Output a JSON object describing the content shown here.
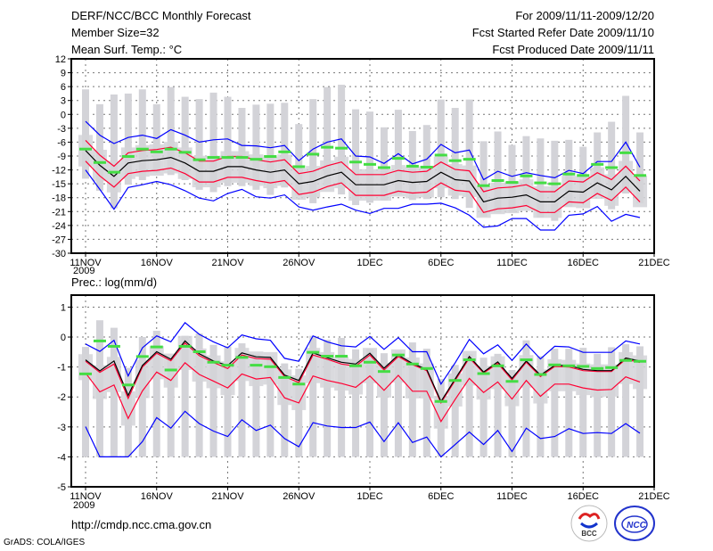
{
  "header": {
    "title": "DERF/NCC/BCC Monthly Forecast",
    "member_size": "Member Size=32",
    "variable": "Mean Surf. Temp.: °C",
    "period": "For 2009/11/11-2009/12/20",
    "start_date": "Fcst Started Refer Date 2009/11/10",
    "produced_date": "Fcst Produced Date 2009/11/11"
  },
  "footer": {
    "url": "http://cmdp.ncc.cma.gov.cn",
    "grads": "GrADS: COLA/IGES",
    "logo_bcc": "BCC",
    "logo_ncc": "NCC"
  },
  "colors": {
    "spread": "#0000ff",
    "quartile": "#ff0033",
    "mean": "#000000",
    "obs": "#44dd44",
    "bar": "#d3d3d8"
  },
  "chart_data": [
    {
      "type": "line",
      "title": "Mean Surf. Temp.: °C",
      "x_ticks": [
        "11NOV",
        "16NOV",
        "21NOV",
        "26NOV",
        "1DEC",
        "6DEC",
        "11DEC",
        "16DEC",
        "21DEC"
      ],
      "x_year": "2009",
      "ylim": [
        -30,
        12
      ],
      "y_ticks": [
        -30,
        -27,
        -24,
        -21,
        -18,
        -15,
        -12,
        -9,
        -6,
        -3,
        0,
        3,
        6,
        9,
        12
      ],
      "grid": true,
      "days": 40,
      "series": [
        {
          "name": "bar_high",
          "values": [
            5.4,
            2.2,
            4.3,
            4.5,
            5.4,
            2.2,
            5.9,
            3.8,
            3.3,
            4.7,
            3.8,
            1.4,
            2.1,
            2.3,
            2.5,
            -2.1,
            3.3,
            5.9,
            6.4,
            1.1,
            0.6,
            -2.8,
            1,
            -3.6,
            -2.3,
            3.2,
            1.4,
            3.2,
            -5.8,
            -3.7,
            -6.6,
            -4.7,
            -5.2,
            -5.7,
            -5.5,
            -7,
            -3.9,
            -1.6,
            4,
            -3.9
          ]
        },
        {
          "name": "bar_low",
          "values": [
            -13.9,
            -16.5,
            -20.3,
            -15.2,
            -14.2,
            -12.6,
            -13.1,
            -14.2,
            -16.3,
            -16.8,
            -15.5,
            -15.5,
            -16.3,
            -17.4,
            -15.8,
            -17.6,
            -19.2,
            -15.5,
            -17.3,
            -19.6,
            -19.1,
            -18.6,
            -17.3,
            -18.5,
            -18.3,
            -17.9,
            -18.3,
            -20.2,
            -22.1,
            -21.2,
            -21.2,
            -19.9,
            -22.3,
            -23,
            -19.9,
            -18.9,
            -17.3,
            -20.5,
            -17.1,
            -19.2
          ]
        },
        {
          "name": "blue_upper",
          "values": [
            -1.5,
            -4.5,
            -6.3,
            -5,
            -4.5,
            -5.2,
            -3.3,
            -4.5,
            -6,
            -5.5,
            -5.3,
            -6.7,
            -6.8,
            -7.2,
            -6.7,
            -10,
            -7.5,
            -6,
            -5.3,
            -9,
            -9.2,
            -10.6,
            -8.5,
            -10.7,
            -9.7,
            -6.5,
            -8.3,
            -7.7,
            -14.1,
            -12.3,
            -13.4,
            -12.6,
            -13.2,
            -13.7,
            -12.1,
            -12.8,
            -10.2,
            -10.2,
            -6,
            -11.4
          ]
        },
        {
          "name": "blue_lower",
          "values": [
            -12,
            -16.2,
            -20.5,
            -15.8,
            -15.2,
            -14.5,
            -15.2,
            -16.5,
            -18.1,
            -18.7,
            -17.1,
            -16.2,
            -17.8,
            -18.1,
            -17.4,
            -20,
            -20.7,
            -20,
            -19.4,
            -20.7,
            -21.4,
            -20.3,
            -20.3,
            -19.4,
            -19.4,
            -19.2,
            -20.2,
            -21.8,
            -24.4,
            -24.1,
            -22.5,
            -22.5,
            -25,
            -25,
            -21.8,
            -21.5,
            -19.9,
            -23.1,
            -21.6,
            -22.3
          ]
        },
        {
          "name": "red_upper",
          "values": [
            -5.6,
            -8.8,
            -11.2,
            -8.3,
            -7.8,
            -7.6,
            -7.1,
            -8.3,
            -10.1,
            -10.1,
            -9.1,
            -9.1,
            -9.8,
            -10.3,
            -9.8,
            -12.8,
            -12.3,
            -11.1,
            -10.3,
            -13,
            -13,
            -13,
            -12.1,
            -12.5,
            -12.3,
            -10.3,
            -11.9,
            -12.2,
            -16.7,
            -15.9,
            -15.7,
            -15.2,
            -16.7,
            -16.7,
            -14.4,
            -14.6,
            -12.6,
            -14.1,
            -11.2,
            -14.4
          ]
        },
        {
          "name": "red_lower",
          "values": [
            -10.1,
            -13.3,
            -15.7,
            -12.8,
            -12.3,
            -12.1,
            -11.6,
            -12.8,
            -14.6,
            -14.6,
            -13.6,
            -13.6,
            -14.3,
            -14.8,
            -14.3,
            -17.3,
            -16.8,
            -15.6,
            -14.8,
            -17.5,
            -17.5,
            -17.5,
            -16.6,
            -17,
            -16.8,
            -14.8,
            -16.4,
            -16.7,
            -21.2,
            -20.4,
            -20.2,
            -19.7,
            -21.2,
            -21.2,
            -18.9,
            -19.1,
            -17.1,
            -18.6,
            -15.7,
            -18.9
          ]
        },
        {
          "name": "mean",
          "values": [
            -7.8,
            -11,
            -13.4,
            -10.5,
            -10,
            -9.8,
            -9.3,
            -10.5,
            -12.3,
            -12.3,
            -11.3,
            -11.3,
            -12,
            -12.5,
            -12,
            -15,
            -14.5,
            -13.3,
            -12.5,
            -15.2,
            -15.2,
            -15.2,
            -14.3,
            -14.7,
            -14.5,
            -12.5,
            -14.1,
            -14.4,
            -18.9,
            -18.1,
            -17.9,
            -17.4,
            -18.9,
            -18.9,
            -16.6,
            -16.8,
            -14.8,
            -16.3,
            -13.4,
            -16.6
          ]
        },
        {
          "name": "green_marks",
          "values": [
            -7.5,
            -10.4,
            -12.5,
            -9.1,
            -7.5,
            -8.1,
            -7.5,
            -8.2,
            -9.8,
            -9.3,
            -9.3,
            -9.3,
            -9.7,
            -9.1,
            -8.1,
            -11.3,
            -8.6,
            -7.1,
            -7.3,
            -10.3,
            -10.8,
            -11.5,
            -9.5,
            -11.2,
            -11.4,
            -8.8,
            -10,
            -9.7,
            -15.4,
            -14.3,
            -14.7,
            -13.3,
            -14.8,
            -15,
            -12.9,
            -13.2,
            -10.8,
            -11.5,
            -8.3,
            -13.2
          ]
        }
      ]
    },
    {
      "type": "line",
      "title": "Prec.: log(mm/d)",
      "x_ticks": [
        "11NOV",
        "16NOV",
        "21NOV",
        "26NOV",
        "1DEC",
        "6DEC",
        "11DEC",
        "16DEC",
        "21DEC"
      ],
      "x_year": "2009",
      "ylim": [
        -5,
        1.4
      ],
      "y_ticks": [
        -5,
        -4,
        -3,
        -2,
        -1,
        0,
        1
      ],
      "grid": true,
      "days": 40,
      "series": [
        {
          "name": "bar_high",
          "values": [
            -0.33,
            0.56,
            0.31,
            -1.03,
            0,
            0.21,
            -0.71,
            0.04,
            0.12,
            -0.26,
            -0.31,
            -0.21,
            -0.56,
            -0.63,
            -0.88,
            -1.06,
            0.04,
            -0.09,
            -0.03,
            -0.41,
            -0.39,
            -0.54,
            -0.46,
            -0.18,
            -0.39,
            -1.4,
            -0.93,
            -0.56,
            -0.69,
            -0.56,
            -1.1,
            -0.11,
            -0.64,
            -0.39,
            -0.39,
            -0.36,
            -0.56,
            -0.34,
            -0.24,
            -0.31
          ]
        },
        {
          "name": "bar_low",
          "values": [
            -4,
            -4,
            -4,
            -4,
            -4,
            -4,
            -4,
            -4,
            -4,
            -4,
            -4,
            -4,
            -4,
            -4,
            -4,
            -4,
            -4,
            -4,
            -4,
            -4,
            -4,
            -4,
            -4,
            -4,
            -4,
            -4,
            -4,
            -4,
            -4,
            -4,
            -4,
            -4,
            -4,
            -4,
            -4,
            -4,
            -4,
            -4,
            -4,
            -4
          ]
        },
        {
          "name": "blue_upper",
          "values": [
            -0.23,
            -0.48,
            -0.11,
            -1.3,
            -0.36,
            0.04,
            -0.16,
            0.48,
            0.09,
            -0.16,
            -0.36,
            0.07,
            -0.06,
            -0.11,
            -0.71,
            -0.81,
            0.04,
            -0.16,
            -0.29,
            -0.33,
            0.02,
            -0.41,
            -0.02,
            -0.49,
            -0.49,
            -1.57,
            -0.86,
            -0.08,
            -0.56,
            -0.26,
            -0.78,
            -0.23,
            -0.73,
            -0.31,
            -0.33,
            -0.51,
            -0.51,
            -0.51,
            -0.13,
            -0.23
          ]
        },
        {
          "name": "blue_lower",
          "values": [
            -2.99,
            -4,
            -4,
            -4,
            -3.49,
            -2.69,
            -3.04,
            -2.48,
            -2.89,
            -3.14,
            -3.32,
            -2.76,
            -3.12,
            -2.94,
            -3.39,
            -3.66,
            -2.86,
            -2.97,
            -3.02,
            -3.02,
            -2.84,
            -3.49,
            -2.86,
            -3.52,
            -3.34,
            -4,
            -3.59,
            -3.17,
            -3.59,
            -3.12,
            -3.82,
            -3.04,
            -3.39,
            -3.32,
            -3.06,
            -3.22,
            -3.19,
            -3.22,
            -2.89,
            -3.21
          ]
        },
        {
          "name": "red_upper",
          "values": [
            -0.81,
            -1.18,
            -0.9,
            -2.05,
            -1,
            -0.54,
            -0.79,
            -0.2,
            -0.62,
            -0.85,
            -1.05,
            -0.6,
            -0.72,
            -0.74,
            -1.32,
            -1.52,
            -0.6,
            -0.74,
            -0.9,
            -0.97,
            -0.6,
            -1.1,
            -0.65,
            -0.92,
            -1.12,
            -2.2,
            -1.45,
            -0.7,
            -1.2,
            -0.88,
            -1.43,
            -0.84,
            -1.32,
            -0.98,
            -1,
            -1.12,
            -1.15,
            -1.15,
            -0.74,
            -0.85
          ]
        },
        {
          "name": "red_lower",
          "values": [
            -1.2,
            -1.83,
            -1.6,
            -2.72,
            -1.8,
            -1.17,
            -1.45,
            -0.86,
            -1.25,
            -1.47,
            -1.7,
            -1.23,
            -1.4,
            -1.35,
            -2.03,
            -2.2,
            -1.3,
            -1.45,
            -1.55,
            -1.68,
            -1.3,
            -1.78,
            -1.28,
            -1.81,
            -1.81,
            -2.82,
            -2.08,
            -1.38,
            -1.85,
            -1.5,
            -2.07,
            -1.45,
            -1.98,
            -1.57,
            -1.57,
            -1.7,
            -1.77,
            -1.75,
            -1.33,
            -1.5
          ]
        },
        {
          "name": "mean",
          "values": [
            -0.76,
            -1.13,
            -0.8,
            -1.95,
            -0.95,
            -0.49,
            -0.74,
            -0.13,
            -0.56,
            -0.8,
            -0.95,
            -0.53,
            -0.66,
            -0.68,
            -1.27,
            -1.45,
            -0.53,
            -0.69,
            -0.84,
            -0.9,
            -0.54,
            -1.04,
            -0.6,
            -0.88,
            -1.08,
            -2.15,
            -1.4,
            -0.65,
            -1.17,
            -0.83,
            -1.38,
            -0.8,
            -1.27,
            -0.95,
            -0.95,
            -1.08,
            -1.12,
            -1.12,
            -0.7,
            -0.8
          ]
        },
        {
          "name": "green_marks",
          "values": [
            -1.23,
            -0.13,
            -0.31,
            -1.6,
            -0.65,
            -0.33,
            -1.1,
            -0.31,
            -0.49,
            -0.84,
            -0.94,
            -0.68,
            -0.94,
            -0.99,
            -1.35,
            -1.57,
            -0.51,
            -0.64,
            -0.64,
            -0.96,
            -0.84,
            -1.15,
            -0.6,
            -0.9,
            -1.05,
            -2.15,
            -1.45,
            -0.76,
            -1.22,
            -0.96,
            -1.48,
            -0.76,
            -1.25,
            -0.93,
            -0.96,
            -0.98,
            -1.05,
            -1.02,
            -0.78,
            -0.81
          ]
        }
      ]
    }
  ]
}
